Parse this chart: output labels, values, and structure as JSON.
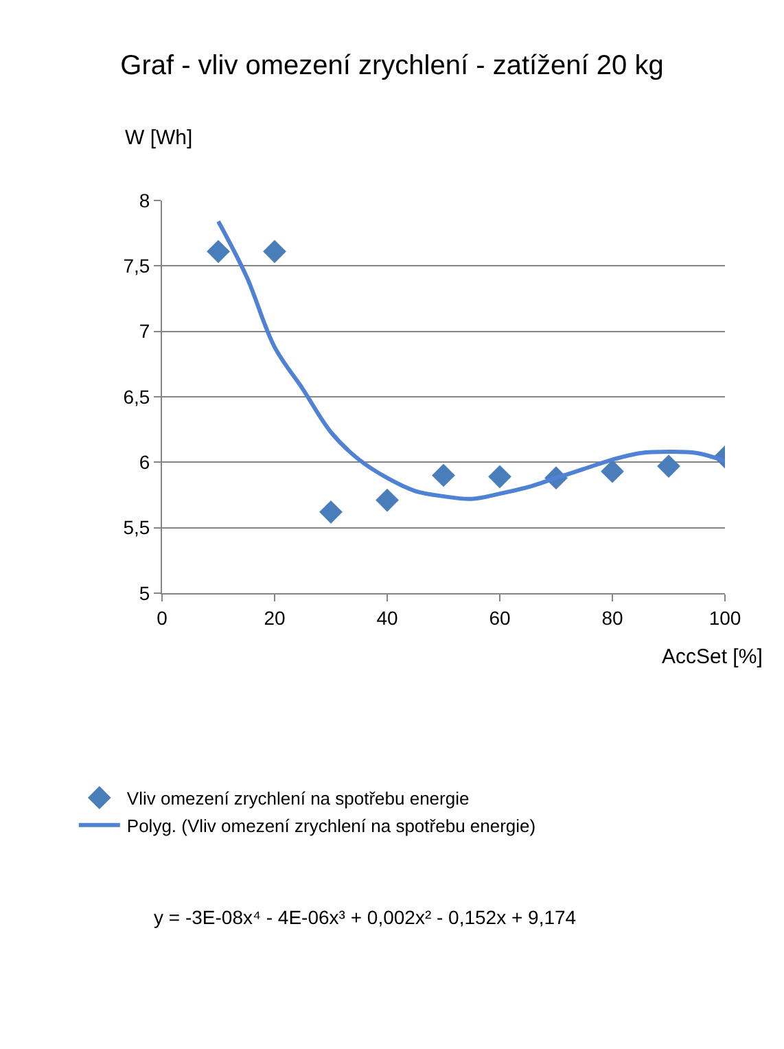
{
  "chart_data": {
    "type": "scatter",
    "title": "Graf - vliv omezení zrychlení - zatížení 20 kg",
    "xlabel": "AccSet [%]",
    "ylabel": "W [Wh]",
    "x": [
      10,
      20,
      30,
      40,
      50,
      60,
      70,
      80,
      90,
      100
    ],
    "series": [
      {
        "name": "Vliv omezení zrychlení na spotřebu energie",
        "marker": "diamond",
        "color": "#4a7ebb",
        "values": [
          7.61,
          7.61,
          5.62,
          5.71,
          5.9,
          5.89,
          5.88,
          5.93,
          5.97,
          6.04
        ]
      },
      {
        "name": "Polyg. (Vliv omezení zrychlení na spotřebu energie)",
        "type": "line",
        "marker": "none",
        "line_style": "solid",
        "color": "#4f81d5",
        "x": [
          10,
          15,
          20,
          25,
          30,
          35,
          40,
          45,
          50,
          55,
          60,
          65,
          70,
          75,
          80,
          85,
          90,
          95,
          100
        ],
        "values": [
          7.84,
          7.42,
          6.88,
          6.56,
          6.23,
          6.02,
          5.88,
          5.78,
          5.74,
          5.72,
          5.76,
          5.81,
          5.88,
          5.95,
          6.02,
          6.07,
          6.08,
          6.07,
          6.01
        ]
      }
    ],
    "xlim": [
      0,
      100
    ],
    "xticks": [
      0,
      20,
      40,
      60,
      80,
      100
    ],
    "ylim": [
      5,
      8
    ],
    "yticks": [
      5,
      {
        "value": 5.5,
        "label": "5,5"
      },
      6,
      {
        "value": 6.5,
        "label": "6,5"
      },
      7,
      {
        "value": 7.5,
        "label": "7,5"
      },
      8
    ],
    "grid": "y",
    "legend": "bottom",
    "annotations": [
      "y = -3E-08x⁴ - 4E-06x³ + 0,002x² - 0,152x + 9,174"
    ]
  }
}
